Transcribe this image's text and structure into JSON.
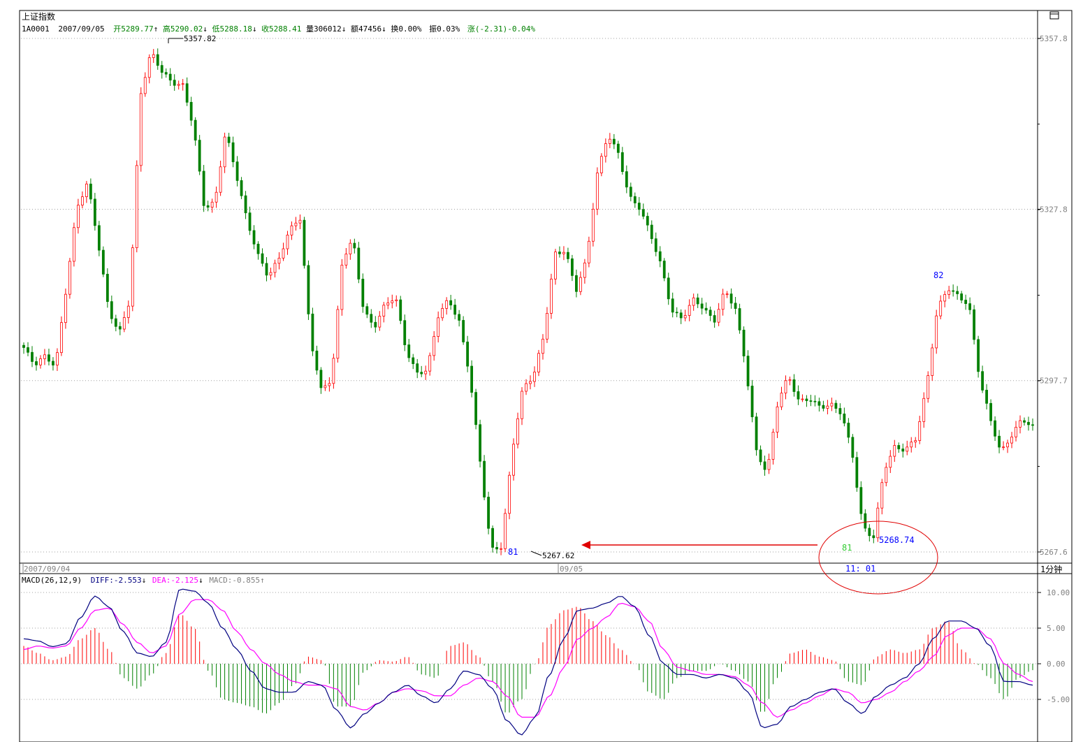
{
  "header": {
    "title": "上证指数",
    "code": "1A0001",
    "date": "2007/09/05",
    "open_label": "开5289.77",
    "high_label": "高5290.02",
    "low_label": "低5288.18",
    "close_label": "收5288.41",
    "volume_label": "量306012",
    "amount_label": "额47456",
    "turnover_label": "换0.00%",
    "amplitude_label": "振0.03%",
    "change_label": "涨(-2.31)-0.04%"
  },
  "price_axis": {
    "ticks": [
      "5357.8",
      "5327.8",
      "5297.7",
      "5267.6"
    ]
  },
  "time_axis": {
    "start_label": "2007/09/04",
    "mid_label": "09/05",
    "period_label": "1分钟"
  },
  "annotations": {
    "max_label": "5357.82",
    "min_label": "5267.62",
    "label_81_left": "81",
    "label_81_right": "81",
    "label_82": "82",
    "price_right": "5268.74",
    "time_right": "11: 01"
  },
  "macd": {
    "title": "MACD(26,12,9)",
    "diff_label": "DIFF:-2.553",
    "dea_label": "DEA:-2.125",
    "macd_label": "MACD:-0.855",
    "ticks": [
      "10.00",
      "5.00",
      "0.00",
      "-5.00"
    ]
  },
  "colors": {
    "up": "#ff0000",
    "down": "#008000",
    "diff": "#000080",
    "dea": "#ff00ff",
    "grid": "#a0a0a0",
    "annotation_blue": "#0000ff",
    "annotation_green": "#33cc33",
    "annotation_red": "#e00000"
  },
  "chart_data": [
    {
      "type": "candlestick",
      "title": "上证指数",
      "ylim": [
        5265,
        5362
      ],
      "y_ticks": [
        5357.8,
        5327.8,
        5297.7,
        5267.6
      ],
      "grid": true,
      "max_point": 5357.82,
      "min_point": 5267.62,
      "close_points": [
        5303.5,
        5300.5,
        5302.0,
        5300.2,
        5314.0,
        5328.0,
        5332.5,
        5322.0,
        5310.0,
        5306.0,
        5312.0,
        5348.0,
        5355.5,
        5352.0,
        5350.0,
        5349.5,
        5342.0,
        5328.0,
        5329.0,
        5341.5,
        5334.0,
        5326.0,
        5320.0,
        5316.0,
        5319.0,
        5324.0,
        5326.5,
        5305.0,
        5296.0,
        5298.0,
        5319.0,
        5322.5,
        5310.0,
        5307.0,
        5311.0,
        5312.5,
        5303.0,
        5299.0,
        5299.5,
        5309.0,
        5312.0,
        5308.0,
        5298.5,
        5283.0,
        5268.0,
        5268.5,
        5285.5,
        5296.5,
        5298.5,
        5306.0,
        5320.0,
        5320.5,
        5313.5,
        5319.0,
        5334.0,
        5341.0,
        5337.5,
        5330.0,
        5328.0,
        5323.5,
        5318.0,
        5310.0,
        5308.5,
        5312.0,
        5310.5,
        5308.0,
        5313.5,
        5310.5,
        5300.0,
        5285.0,
        5281.5,
        5294.0,
        5298.5,
        5294.0,
        5294.5,
        5293.0,
        5293.5,
        5292.0,
        5285.0,
        5272.0,
        5270.0,
        5282.0,
        5286.0,
        5285.5,
        5287.5,
        5296.5,
        5310.0,
        5314.0,
        5312.5,
        5311.0,
        5298.0,
        5291.0,
        5285.0,
        5288.0,
        5291.0,
        5289.5
      ]
    },
    {
      "type": "bar+line",
      "title": "MACD(26,12,9)",
      "ylim": [
        -10,
        12
      ],
      "y_ticks": [
        10,
        5,
        0,
        -5
      ],
      "series": [
        {
          "name": "DIFF",
          "values": [
            3.5,
            3.2,
            2.4,
            2.8,
            6.5,
            9.5,
            8.0,
            4.5,
            1.5,
            1.0,
            3.0,
            10.5,
            10.2,
            8.5,
            5.0,
            2.0,
            -1.0,
            -3.5,
            -4.0,
            -4.0,
            -2.5,
            -3.0,
            -6.5,
            -9.0,
            -7.0,
            -5.5,
            -4.0,
            -3.0,
            -4.5,
            -5.5,
            -3.5,
            -1.0,
            -1.5,
            -3.5,
            -8.0,
            -10.0,
            -7.5,
            -1.5,
            3.5,
            7.5,
            7.8,
            8.5,
            9.5,
            8.0,
            4.0,
            0.0,
            -1.5,
            -1.5,
            -2.0,
            -1.5,
            -2.0,
            -4.0,
            -9.0,
            -8.5,
            -6.0,
            -5.0,
            -4.0,
            -3.5,
            -5.5,
            -7.0,
            -4.5,
            -3.0,
            -2.0,
            0.0,
            3.5,
            6.0,
            6.0,
            5.0,
            2.5,
            -2.5,
            -2.5,
            -3.0
          ]
        },
        {
          "name": "DEA",
          "values": [
            2.0,
            2.5,
            2.2,
            2.5,
            5.0,
            7.5,
            7.8,
            5.5,
            3.0,
            1.5,
            2.5,
            7.0,
            9.0,
            9.0,
            7.5,
            4.5,
            2.0,
            0.0,
            -1.5,
            -2.5,
            -3.0,
            -3.0,
            -3.5,
            -6.0,
            -6.5,
            -5.5,
            -4.0,
            -3.5,
            -3.8,
            -4.5,
            -4.5,
            -3.0,
            -2.0,
            -2.5,
            -4.5,
            -7.5,
            -7.5,
            -4.5,
            -0.5,
            3.5,
            5.0,
            6.5,
            8.5,
            8.0,
            6.0,
            2.0,
            -0.5,
            -1.0,
            -1.5,
            -1.5,
            -1.8,
            -3.0,
            -5.5,
            -7.5,
            -6.5,
            -5.5,
            -4.5,
            -3.5,
            -4.0,
            -5.5,
            -5.0,
            -4.0,
            -2.5,
            -1.0,
            1.0,
            4.0,
            5.0,
            5.0,
            3.5,
            0.0,
            -1.5,
            -2.5
          ]
        },
        {
          "name": "MACD",
          "values": [
            2.5,
            1.5,
            0.5,
            1.0,
            3.5,
            5.0,
            2.0,
            -2.0,
            -3.5,
            -1.5,
            1.5,
            7.0,
            5.0,
            -1.0,
            -5.0,
            -5.5,
            -6.0,
            -7.0,
            -5.5,
            -3.0,
            1.0,
            0.5,
            -6.0,
            -6.0,
            -1.0,
            0.5,
            0.3,
            1.0,
            -1.5,
            -2.0,
            2.5,
            3.0,
            1.0,
            -2.5,
            -7.0,
            -5.0,
            0.0,
            5.5,
            7.5,
            8.0,
            6.0,
            4.0,
            2.0,
            0.0,
            -4.0,
            -5.0,
            -2.0,
            -1.0,
            -1.0,
            0.0,
            -1.0,
            -2.5,
            -7.0,
            -2.0,
            1.5,
            2.0,
            1.0,
            0.5,
            -2.5,
            -3.0,
            1.0,
            2.0,
            1.5,
            2.0,
            5.0,
            6.0,
            2.0,
            0.0,
            -2.0,
            -5.0,
            -2.0,
            -0.9
          ]
        }
      ]
    }
  ]
}
